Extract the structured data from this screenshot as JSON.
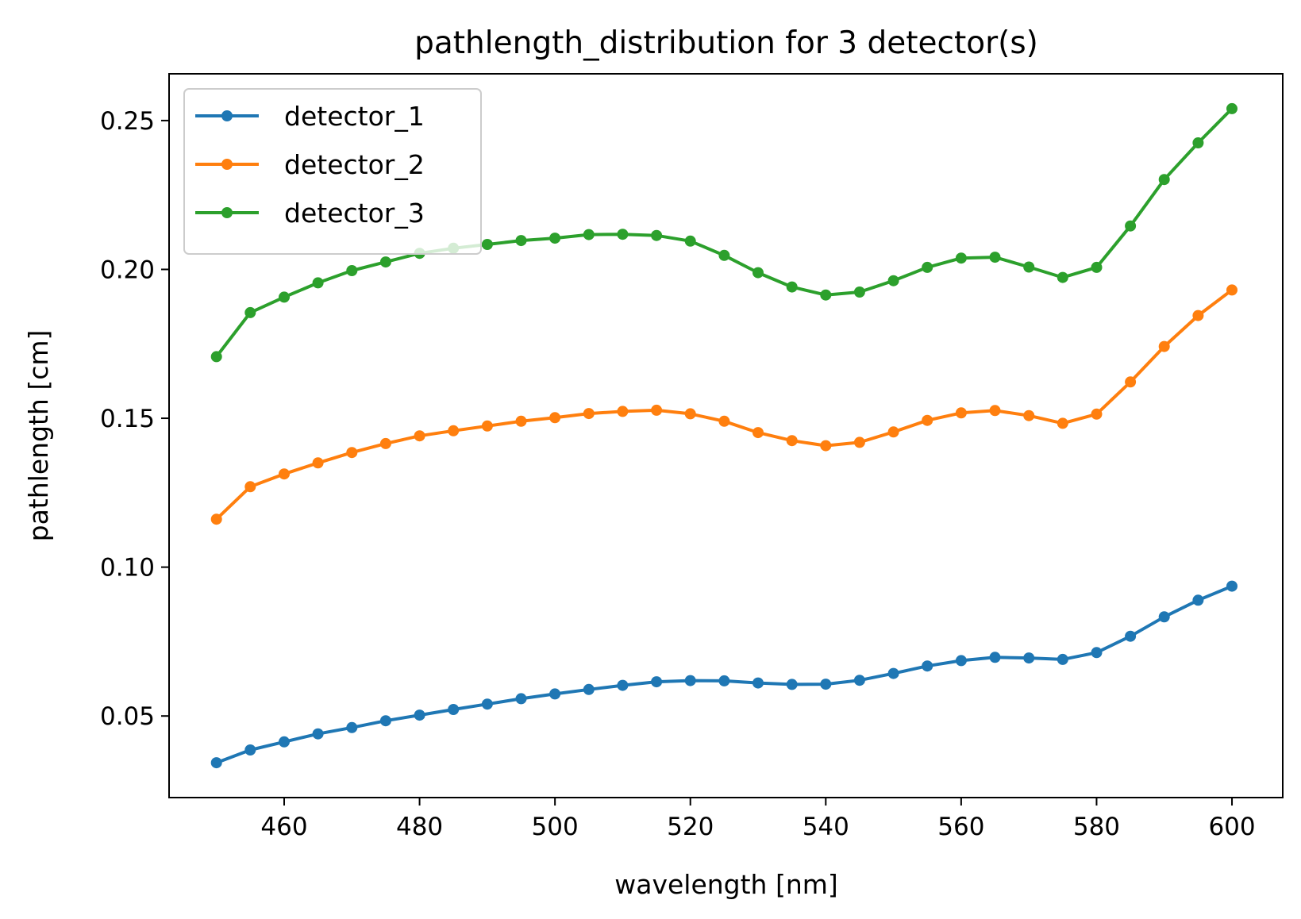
{
  "chart_data": {
    "type": "line",
    "title": "pathlength_distribution for 3 detector(s)",
    "xlabel": "wavelength [nm]",
    "ylabel": "pathlength [cm]",
    "xlim": [
      443,
      607.5
    ],
    "ylim": [
      0.0226,
      0.2657
    ],
    "xticks": [
      460,
      480,
      500,
      520,
      540,
      560,
      580,
      600
    ],
    "yticks": [
      0.05,
      0.1,
      0.15,
      0.2,
      0.25
    ],
    "xtick_labels": [
      "460",
      "480",
      "500",
      "520",
      "540",
      "560",
      "580",
      "600"
    ],
    "ytick_labels": [
      "0.05",
      "0.10",
      "0.15",
      "0.20",
      "0.25"
    ],
    "grid": false,
    "legend_position": "upper-left",
    "x": [
      450,
      455,
      460,
      465,
      470,
      475,
      480,
      485,
      490,
      495,
      500,
      505,
      510,
      515,
      520,
      525,
      530,
      535,
      540,
      545,
      550,
      555,
      560,
      565,
      570,
      575,
      580,
      585,
      590,
      595,
      600
    ],
    "series": [
      {
        "name": "detector_1",
        "color": "#1f77b4",
        "values": [
          0.0343,
          0.0386,
          0.0413,
          0.044,
          0.0461,
          0.0484,
          0.0503,
          0.0522,
          0.054,
          0.0558,
          0.0574,
          0.0589,
          0.0603,
          0.0615,
          0.0619,
          0.0618,
          0.0611,
          0.0606,
          0.0607,
          0.062,
          0.0643,
          0.0668,
          0.0686,
          0.0697,
          0.0695,
          0.069,
          0.0713,
          0.0768,
          0.0833,
          0.0889,
          0.0936
        ]
      },
      {
        "name": "detector_2",
        "color": "#ff7f0e",
        "values": [
          0.1161,
          0.127,
          0.1313,
          0.135,
          0.1385,
          0.1415,
          0.1441,
          0.1458,
          0.1474,
          0.149,
          0.1502,
          0.1516,
          0.1523,
          0.1527,
          0.1515,
          0.149,
          0.1452,
          0.1425,
          0.1408,
          0.1419,
          0.1454,
          0.1493,
          0.1518,
          0.1526,
          0.1509,
          0.1483,
          0.1514,
          0.1622,
          0.1741,
          0.1845,
          0.1931
        ]
      },
      {
        "name": "detector_3",
        "color": "#2ca02c",
        "values": [
          0.1707,
          0.1855,
          0.1907,
          0.1955,
          0.1996,
          0.2025,
          0.2054,
          0.2071,
          0.2084,
          0.2097,
          0.2105,
          0.2117,
          0.2118,
          0.2114,
          0.2095,
          0.2047,
          0.1989,
          0.1941,
          0.1914,
          0.1924,
          0.1962,
          0.2007,
          0.2038,
          0.2041,
          0.2008,
          0.1973,
          0.2007,
          0.2146,
          0.2302,
          0.2425,
          0.254
        ]
      }
    ]
  }
}
